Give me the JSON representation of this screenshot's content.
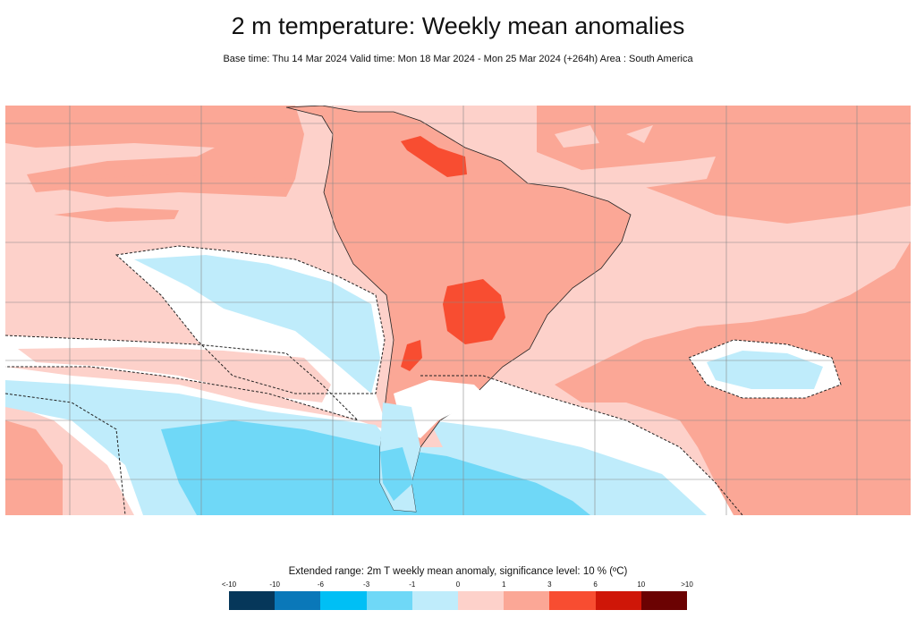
{
  "title": "2 m temperature: Weekly mean anomalies",
  "subtitle": "Base time: Thu 14 Mar 2024 Valid time: Mon 18 Mar 2024 - Mon 25 Mar 2024 (+264h) Area : South America",
  "map": {
    "area": "South America",
    "significance_contour": "dashed",
    "land_outline_color": "#222222"
  },
  "legend": {
    "title": "Extended range: 2m T weekly mean anomaly, significance level: 10 % (ºC)",
    "ticks": [
      "<-10",
      "-10",
      "-6",
      "-3",
      "-1",
      "0",
      "1",
      "3",
      "6",
      "10",
      ">10"
    ],
    "colors": [
      "#06375a",
      "#0a78b9",
      "#00bff5",
      "#6fd8f7",
      "#bfecfb",
      "#fdd1ca",
      "#fba796",
      "#f84d31",
      "#cf1608",
      "#6b0202"
    ]
  }
}
